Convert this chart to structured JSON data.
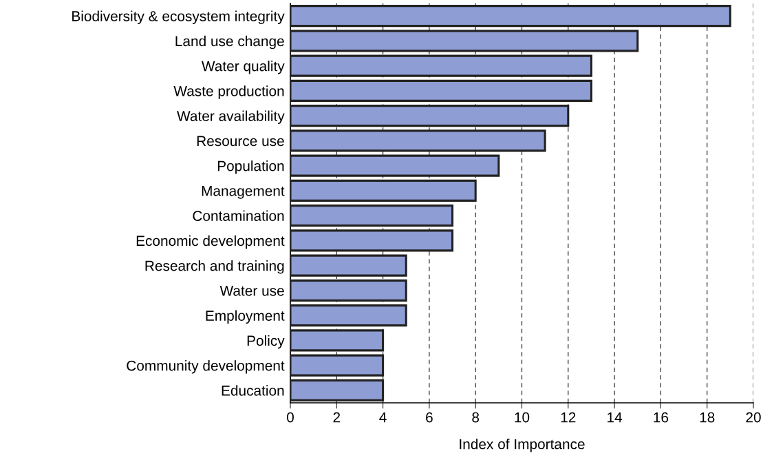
{
  "chart_data": {
    "type": "bar",
    "orientation": "horizontal",
    "xlabel": "Index of Importance",
    "categories": [
      "Biodiversity & ecosystem integrity",
      "Land use change",
      "Water quality",
      "Waste production",
      "Water availability",
      "Resource use",
      "Population",
      "Management",
      "Contamination",
      "Economic development",
      "Research and training",
      "Water use",
      "Employment",
      "Policy",
      "Community development",
      "Education"
    ],
    "values": [
      19,
      15,
      13,
      13,
      12,
      11,
      9,
      8,
      7,
      7,
      5,
      5,
      5,
      4,
      4,
      4
    ],
    "color": "#8e9dd4",
    "xlim": [
      0,
      20
    ],
    "xticks": [
      0,
      2,
      4,
      6,
      8,
      10,
      12,
      14,
      16,
      18,
      20
    ],
    "grid": "x",
    "line_style": "dashed"
  }
}
